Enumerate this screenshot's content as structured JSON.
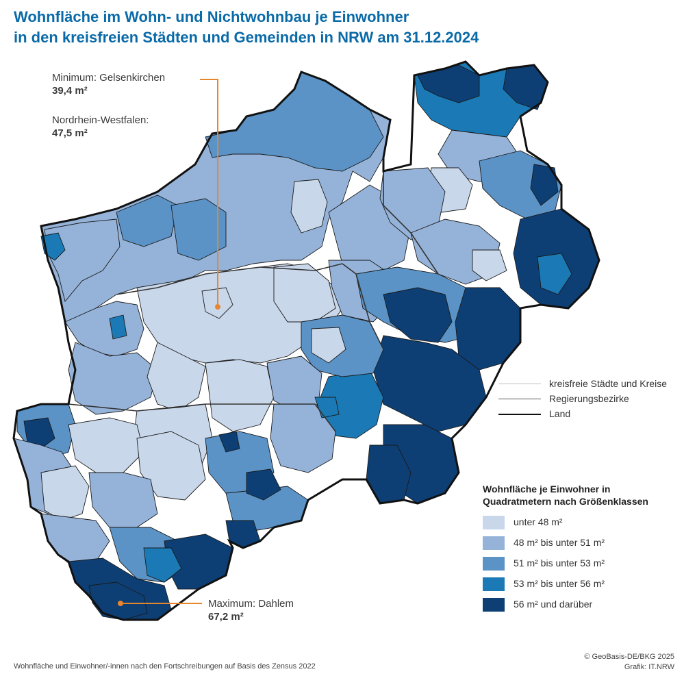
{
  "title": {
    "line1": "Wohnfläche im Wohn- und Nichtwohnbau je Einwohner",
    "line2": "in den kreisfreien Städten und Gemeinden in NRW am 31.12.2024"
  },
  "callouts": {
    "minimum": {
      "label": "Minimum: Gelsenkirchen",
      "value": "39,4 m²"
    },
    "state": {
      "label": "Nordrhein-Westfalen:",
      "value": "47,5 m²"
    },
    "maximum": {
      "label": "Maximum: Dahlem",
      "value": "67,2 m²"
    }
  },
  "boundary_legend": [
    {
      "label": "kreisfreie Städte und Kreise",
      "color": "#bdbdbd"
    },
    {
      "label": "Regierungsbezirke",
      "color": "#555555"
    },
    {
      "label": "Land",
      "color": "#111111"
    }
  ],
  "legend": {
    "title_line1": "Wohnfläche je Einwohner in",
    "title_line2": "Quadratmetern nach Größenklassen",
    "classes": [
      {
        "label": "unter 48 m²",
        "color": "#c9d7ea"
      },
      {
        "label": "48 m² bis unter 51 m²",
        "color": "#95b3d9"
      },
      {
        "label": "51 m² bis unter 53 m²",
        "color": "#5b93c6"
      },
      {
        "label": "53 m² bis unter 56 m²",
        "color": "#1b7ab5"
      },
      {
        "label": "56 m² und darüber",
        "color": "#0d3f74"
      }
    ]
  },
  "accent_color": "#e8862e",
  "footer": {
    "note": "Wohnfläche und Einwohner/-innen nach den Fortschreibungen auf Basis des Zensus 2022",
    "copyright": "© GeoBasis-DE/BKG 2025",
    "credit": "Grafik: IT.NRW"
  }
}
